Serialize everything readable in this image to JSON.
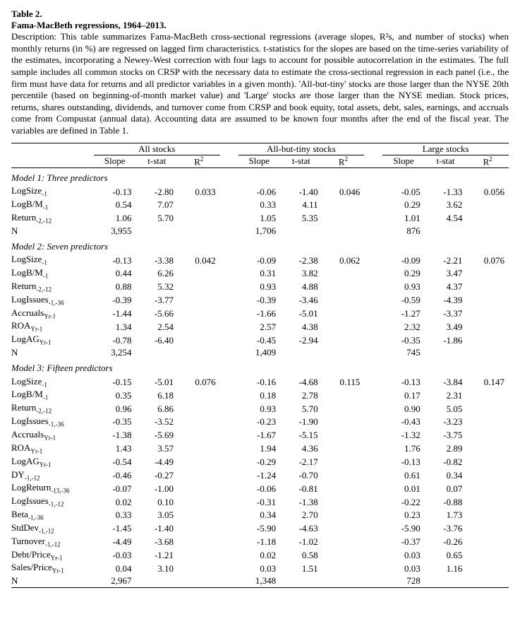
{
  "header": {
    "table_no": "Table 2.",
    "title": "Fama-MacBeth regressions, 1964–2013.",
    "description": "Description: This table summarizes Fama-MacBeth cross-sectional regressions (average slopes, R²s, and number of stocks) when monthly returns (in %) are regressed on lagged firm characteristics.  t-statistics for the slopes are based on the time-series variability of the estimates, incorporating a Newey-West correction with four lags to account for possible autocorrelation in the estimates.  The full sample includes all common stocks on CRSP with the necessary data to estimate the cross-sectional regression in each panel (i.e., the firm must have data for returns and all predictor variables in a given month).  'All-but-tiny' stocks are those larger than the NYSE 20th percentile (based on beginning-of-month market value) and 'Large' stocks are those larger than the NYSE median.  Stock prices, returns, shares outstanding, dividends, and turnover come from CRSP and book equity, total assets, debt, sales, earnings, and accruals come from Compustat (annual data).  Accounting data are assumed to be known four months after the end of the fiscal year.  The variables are defined in Table 1."
  },
  "columns": {
    "groups": [
      "All stocks",
      "All-but-tiny stocks",
      "Large stocks"
    ],
    "subs": [
      "Slope",
      "t-stat",
      "R²"
    ]
  },
  "variables": {
    "LogSize": {
      "base": "LogSize",
      "sub": "-1"
    },
    "LogBM": {
      "base": "LogB/M",
      "sub": "-1"
    },
    "Return212": {
      "base": "Return",
      "sub": "-2,-12"
    },
    "LogIssues136": {
      "base": "LogIssues",
      "sub": "-1,-36"
    },
    "Accruals": {
      "base": "Accruals",
      "sub": "Yr-1"
    },
    "ROA": {
      "base": "ROA",
      "sub": "Yr-1"
    },
    "LogAG": {
      "base": "LogAG",
      "sub": "Yr-1"
    },
    "DY": {
      "base": "DY",
      "sub": "-1,-12"
    },
    "LogReturn1336": {
      "base": "LogReturn",
      "sub": "-13,-36"
    },
    "LogIssues112": {
      "base": "LogIssues",
      "sub": "-1,-12"
    },
    "Beta": {
      "base": "Beta",
      "sub": "-1,-36"
    },
    "StdDev": {
      "base": "StdDev",
      "sub": "-1,-12"
    },
    "Turnover": {
      "base": "Turnover",
      "sub": "-1,-12"
    },
    "DebtPrice": {
      "base": "Debt/Price",
      "sub": "Yr-1"
    },
    "SalesPrice": {
      "base": "Sales/Price",
      "sub": "Yr-1"
    },
    "N": {
      "base": "N",
      "sub": ""
    }
  },
  "models": [
    {
      "title": "Model 1: Three predictors",
      "r2": [
        "0.033",
        "0.046",
        "0.056"
      ],
      "rows": [
        {
          "var": "LogSize",
          "a": [
            "-0.13",
            "-2.80"
          ],
          "b": [
            "-0.06",
            "-1.40"
          ],
          "c": [
            "-0.05",
            "-1.33"
          ]
        },
        {
          "var": "LogBM",
          "a": [
            "0.54",
            "7.07"
          ],
          "b": [
            "0.33",
            "4.11"
          ],
          "c": [
            "0.29",
            "3.62"
          ]
        },
        {
          "var": "Return212",
          "a": [
            "1.06",
            "5.70"
          ],
          "b": [
            "1.05",
            "5.35"
          ],
          "c": [
            "1.01",
            "4.54"
          ]
        },
        {
          "var": "N",
          "a": [
            "3,955",
            ""
          ],
          "b": [
            "1,706",
            ""
          ],
          "c": [
            "876",
            ""
          ]
        }
      ]
    },
    {
      "title": "Model 2: Seven predictors",
      "r2": [
        "0.042",
        "0.062",
        "0.076"
      ],
      "rows": [
        {
          "var": "LogSize",
          "a": [
            "-0.13",
            "-3.38"
          ],
          "b": [
            "-0.09",
            "-2.38"
          ],
          "c": [
            "-0.09",
            "-2.21"
          ]
        },
        {
          "var": "LogBM",
          "a": [
            "0.44",
            "6.26"
          ],
          "b": [
            "0.31",
            "3.82"
          ],
          "c": [
            "0.29",
            "3.47"
          ]
        },
        {
          "var": "Return212",
          "a": [
            "0.88",
            "5.32"
          ],
          "b": [
            "0.93",
            "4.88"
          ],
          "c": [
            "0.93",
            "4.37"
          ]
        },
        {
          "var": "LogIssues136",
          "a": [
            "-0.39",
            "-3.77"
          ],
          "b": [
            "-0.39",
            "-3.46"
          ],
          "c": [
            "-0.59",
            "-4.39"
          ]
        },
        {
          "var": "Accruals",
          "a": [
            "-1.44",
            "-5.66"
          ],
          "b": [
            "-1.66",
            "-5.01"
          ],
          "c": [
            "-1.27",
            "-3.37"
          ]
        },
        {
          "var": "ROA",
          "a": [
            "1.34",
            "2.54"
          ],
          "b": [
            "2.57",
            "4.38"
          ],
          "c": [
            "2.32",
            "3.49"
          ]
        },
        {
          "var": "LogAG",
          "a": [
            "-0.78",
            "-6.40"
          ],
          "b": [
            "-0.45",
            "-2.94"
          ],
          "c": [
            "-0.35",
            "-1.86"
          ]
        },
        {
          "var": "N",
          "a": [
            "3,254",
            ""
          ],
          "b": [
            "1,409",
            ""
          ],
          "c": [
            "745",
            ""
          ]
        }
      ]
    },
    {
      "title": "Model 3: Fifteen predictors",
      "r2": [
        "0.076",
        "0.115",
        "0.147"
      ],
      "rows": [
        {
          "var": "LogSize",
          "a": [
            "-0.15",
            "-5.01"
          ],
          "b": [
            "-0.16",
            "-4.68"
          ],
          "c": [
            "-0.13",
            "-3.84"
          ]
        },
        {
          "var": "LogBM",
          "a": [
            "0.35",
            "6.18"
          ],
          "b": [
            "0.18",
            "2.78"
          ],
          "c": [
            "0.17",
            "2.31"
          ]
        },
        {
          "var": "Return212",
          "a": [
            "0.96",
            "6.86"
          ],
          "b": [
            "0.93",
            "5.70"
          ],
          "c": [
            "0.90",
            "5.05"
          ]
        },
        {
          "var": "LogIssues136",
          "a": [
            "-0.35",
            "-3.52"
          ],
          "b": [
            "-0.23",
            "-1.90"
          ],
          "c": [
            "-0.43",
            "-3.23"
          ]
        },
        {
          "var": "Accruals",
          "a": [
            "-1.38",
            "-5.69"
          ],
          "b": [
            "-1.67",
            "-5.15"
          ],
          "c": [
            "-1.32",
            "-3.75"
          ]
        },
        {
          "var": "ROA",
          "a": [
            "1.43",
            "3.57"
          ],
          "b": [
            "1.94",
            "4.36"
          ],
          "c": [
            "1.76",
            "2.89"
          ]
        },
        {
          "var": "LogAG",
          "a": [
            "-0.54",
            "-4.49"
          ],
          "b": [
            "-0.29",
            "-2.17"
          ],
          "c": [
            "-0.13",
            "-0.82"
          ]
        },
        {
          "var": "DY",
          "a": [
            "-0.46",
            "-0.27"
          ],
          "b": [
            "-1.24",
            "-0.70"
          ],
          "c": [
            "0.61",
            "0.34"
          ]
        },
        {
          "var": "LogReturn1336",
          "a": [
            "-0.07",
            "-1.00"
          ],
          "b": [
            "-0.06",
            "-0.81"
          ],
          "c": [
            "0.01",
            "0.07"
          ]
        },
        {
          "var": "LogIssues112",
          "a": [
            "0.02",
            "0.10"
          ],
          "b": [
            "-0.31",
            "-1.38"
          ],
          "c": [
            "-0.22",
            "-0.88"
          ]
        },
        {
          "var": "Beta",
          "a": [
            "0.33",
            "3.05"
          ],
          "b": [
            "0.34",
            "2.70"
          ],
          "c": [
            "0.23",
            "1.73"
          ]
        },
        {
          "var": "StdDev",
          "a": [
            "-1.45",
            "-1.40"
          ],
          "b": [
            "-5.90",
            "-4.63"
          ],
          "c": [
            "-5.90",
            "-3.76"
          ]
        },
        {
          "var": "Turnover",
          "a": [
            "-4.49",
            "-3.68"
          ],
          "b": [
            "-1.18",
            "-1.02"
          ],
          "c": [
            "-0.37",
            "-0.26"
          ]
        },
        {
          "var": "DebtPrice",
          "a": [
            "-0.03",
            "-1.21"
          ],
          "b": [
            "0.02",
            "0.58"
          ],
          "c": [
            "0.03",
            "0.65"
          ]
        },
        {
          "var": "SalesPrice",
          "a": [
            "0.04",
            "3.10"
          ],
          "b": [
            "0.03",
            "1.51"
          ],
          "c": [
            "0.03",
            "1.16"
          ]
        },
        {
          "var": "N",
          "a": [
            "2,967",
            ""
          ],
          "b": [
            "1,348",
            ""
          ],
          "c": [
            "728",
            ""
          ]
        }
      ]
    }
  ]
}
